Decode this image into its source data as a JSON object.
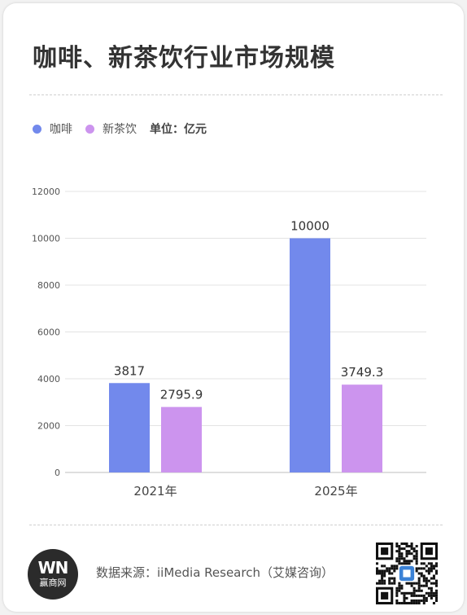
{
  "title": "咖啡、新茶饮行业市场规模",
  "legend": {
    "unit_label": "单位：亿元"
  },
  "colors": {
    "coffee": "#7289ec",
    "tea": "#cc94ee",
    "qr_badge": "#3b82d6"
  },
  "chart_data": {
    "type": "bar",
    "categories": [
      "2021年",
      "2025年"
    ],
    "series": [
      {
        "name": "咖啡",
        "values": [
          3817,
          10000
        ],
        "labels": [
          "3817",
          "10000"
        ]
      },
      {
        "name": "新茶饮",
        "values": [
          2795.9,
          3749.3
        ],
        "labels": [
          "2795.9",
          "3749.3"
        ]
      }
    ],
    "yticks": [
      "0",
      "2000",
      "4000",
      "6000",
      "8000",
      "10000",
      "12000"
    ],
    "ylim": [
      0,
      12000
    ],
    "grid": true,
    "legend_position": "top-left"
  },
  "footer": {
    "logo_mark": "WN",
    "logo_text": "赢商网",
    "source": "数据来源：iiMedia Research（艾媒咨询）",
    "qr_icon": "qr-code-icon"
  }
}
